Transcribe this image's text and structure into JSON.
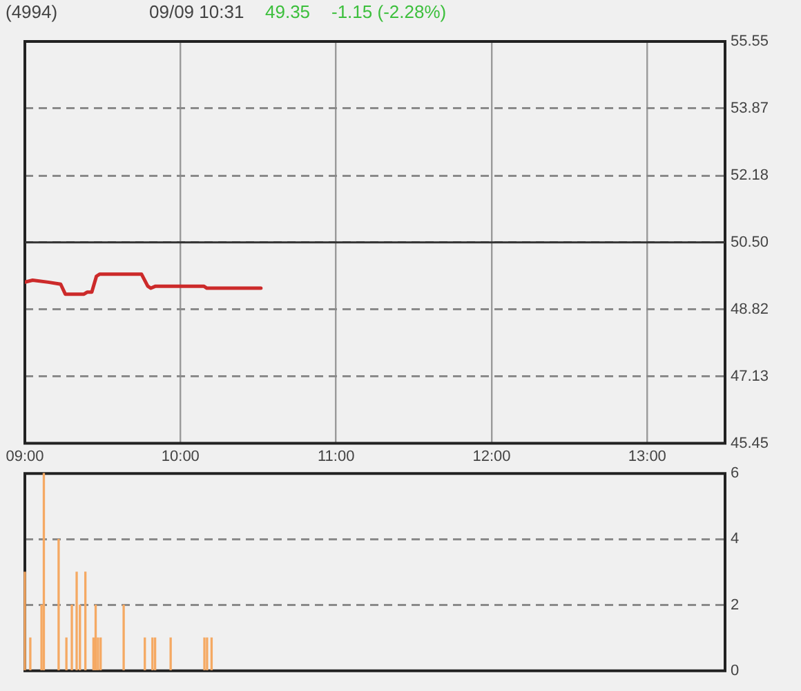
{
  "chart_data": [
    {
      "type": "line",
      "title": "(4994)",
      "subtitle": "09/09 10:31",
      "annotations": [
        "49.35",
        "-1.15 (-2.28%)"
      ],
      "x": [
        9.0,
        9.05,
        9.15,
        9.23,
        9.26,
        9.38,
        9.4,
        9.43,
        9.46,
        9.48,
        9.75,
        9.79,
        9.81,
        9.84,
        10.15,
        10.17,
        10.517
      ],
      "values": [
        49.5,
        49.55,
        49.5,
        49.45,
        49.2,
        49.2,
        49.25,
        49.25,
        49.65,
        49.7,
        49.7,
        49.4,
        49.35,
        49.4,
        49.4,
        49.35,
        49.35
      ],
      "color": "#cc2a2a",
      "xlim": [
        9,
        13.5
      ],
      "xticks": [
        {
          "value": 9,
          "label": "09:00"
        },
        {
          "value": 10,
          "label": "10:00"
        },
        {
          "value": 11,
          "label": "11:00"
        },
        {
          "value": 12,
          "label": "12:00"
        },
        {
          "value": 13,
          "label": "13:00"
        }
      ],
      "ylim": [
        45.45,
        55.55
      ],
      "yticks": [
        45.45,
        47.13,
        48.82,
        {
          "value": 50.5,
          "label": "50.50"
        },
        52.18,
        53.87,
        55.55
      ],
      "ref_lines": [
        {
          "axis": "y",
          "value": 50.5,
          "color": "#333333"
        }
      ],
      "grid": true
    },
    {
      "type": "bar",
      "x": [
        9.0,
        9.035,
        9.107,
        9.122,
        9.217,
        9.267,
        9.302,
        9.333,
        9.354,
        9.389,
        9.441,
        9.455,
        9.47,
        9.487,
        9.635,
        9.771,
        9.82,
        9.837,
        9.937,
        10.154,
        10.171,
        10.2
      ],
      "values": [
        3,
        1,
        2,
        6,
        4,
        1,
        2,
        3,
        2,
        3,
        1,
        2,
        1,
        1,
        2,
        1,
        1,
        1,
        1,
        1,
        1,
        1
      ],
      "color": "#f5a963",
      "xlim": [
        9,
        13.5
      ],
      "ylim": [
        0,
        6
      ],
      "yticks": [
        0,
        2,
        4,
        6
      ],
      "grid": "y",
      "tick_labels": "y"
    }
  ]
}
